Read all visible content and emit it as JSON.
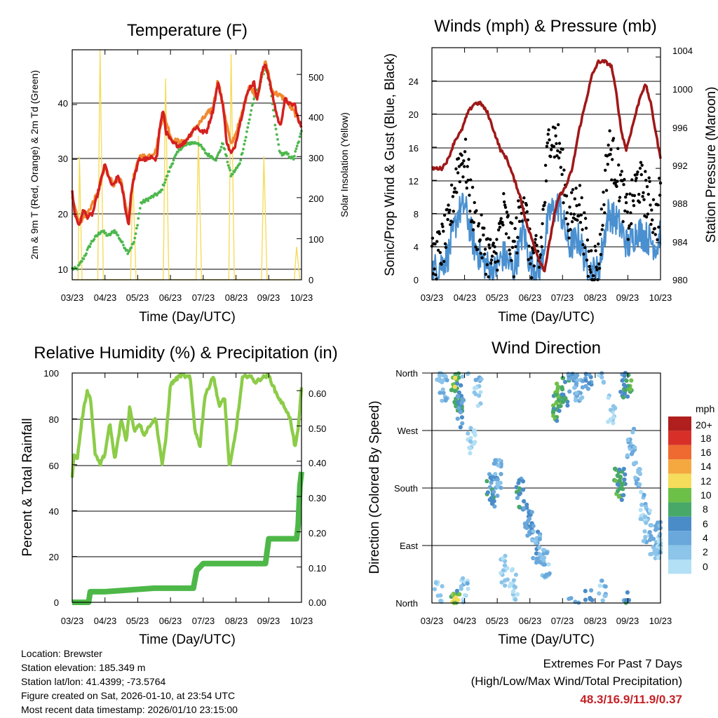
{
  "x_tick_labels": [
    "03/23",
    "04/23",
    "05/23",
    "06/23",
    "07/23",
    "08/23",
    "09/23",
    "10/23"
  ],
  "x_axis_label": "Time (Day/UTC)",
  "temperature_panel": {
    "title": "Temperature (F)",
    "left_label": "2m & 9m T (Red, Orange) & 2m Td (Green)",
    "right_label": "Solar Insolation (Yellow)",
    "left_ticks": [
      "10",
      "20",
      "30",
      "40"
    ],
    "right_ticks": [
      "0",
      "100",
      "200",
      "300",
      "400",
      "500"
    ]
  },
  "wind_panel": {
    "title": "Winds (mph) & Pressure (mb)",
    "left_label": "Sonic/Prop Wind & Gust (Blue, Black)",
    "right_label": "Station Pressure (Maroon)",
    "left_ticks": [
      "0",
      "4",
      "8",
      "12",
      "16",
      "20",
      "24"
    ],
    "right_ticks": [
      "980",
      "984",
      "988",
      "992",
      "996",
      "1000",
      "1004"
    ]
  },
  "humidity_panel": {
    "title": "Relative Humidity (%) & Precipitation (in)",
    "left_label": "Percent & Total Rainfall",
    "left_ticks": [
      "0",
      "20",
      "40",
      "60",
      "80",
      "100"
    ],
    "right_ticks": [
      "0.00",
      "0.10",
      "0.20",
      "0.30",
      "0.40",
      "0.50",
      "0.60"
    ]
  },
  "direction_panel": {
    "title": "Wind Direction",
    "left_label": "Direction (Colored By Speed)",
    "direction_ticks": [
      "North",
      "East",
      "South",
      "West",
      "North"
    ],
    "legend_title": "mph",
    "legend_labels": [
      "20+",
      "18",
      "16",
      "14",
      "12",
      "10",
      "8",
      "6",
      "4",
      "2",
      "0"
    ]
  },
  "colors": {
    "temp_2m": "#d42020",
    "temp_9m": "#f08a30",
    "dewpoint": "#4db84d",
    "solar": "#f5dc5a",
    "gust": "#000000",
    "wind": "#4a90d0",
    "pressure": "#a01818",
    "rh": "#8ccc48",
    "precip": "#4db848",
    "speed_scale": [
      "#b3e0f5",
      "#8cc4ea",
      "#6aa8dc",
      "#4a8cc8",
      "#48a868",
      "#6cc048",
      "#f5dc5a",
      "#f5a840",
      "#ee6a30",
      "#d83028",
      "#b01e1e"
    ]
  },
  "footer": {
    "location": "Location: Brewster",
    "elevation": "Station elevation: 185.349 m",
    "latlon": "Station lat/lon: 41.4399; -73.5764",
    "created": "Figure created on Sat, 2026-01-10, at 23:54 UTC",
    "recent": "Most recent data timestamp: 2026/01/10 23:15:00"
  },
  "extremes": {
    "title": "Extremes For Past 7 Days",
    "subtitle": "(High/Low/Max Wind/Total Precipitation)",
    "values": "48.3/16.9/11.9/0.37"
  },
  "chart_data": [
    {
      "type": "line",
      "title": "Temperature (F)",
      "xlabel": "Time (Day/UTC)",
      "ylabel": "2m & 9m T (Red, Orange) & 2m Td (Green)",
      "y2label": "Solar Insolation (Yellow)",
      "x_days": [
        0,
        1,
        2,
        3,
        4,
        5,
        6,
        7
      ],
      "ylim": [
        8,
        50
      ],
      "y2lim": [
        0,
        560
      ],
      "series": [
        {
          "name": "2m T",
          "x": [
            0,
            0.08,
            0.2,
            0.3,
            0.33,
            0.45,
            0.62,
            0.75,
            0.95,
            1.0,
            1.15,
            1.25,
            1.4,
            1.55,
            1.65,
            1.72,
            1.8,
            1.9,
            2.05,
            2.2,
            2.35,
            2.5,
            2.55,
            2.6,
            2.65,
            2.78,
            2.86,
            3.05,
            3.25,
            3.42,
            3.65,
            3.8,
            3.95,
            4.1,
            4.3,
            4.45,
            4.6,
            4.72,
            4.85,
            4.95,
            5.1,
            5.25,
            5.4,
            5.55,
            5.65,
            5.8,
            5.9,
            6.0,
            6.1,
            6.25,
            6.35,
            6.5,
            6.65,
            6.8,
            6.9,
            7.0
          ],
          "values": [
            24,
            20,
            18,
            19.5,
            21,
            19.5,
            20,
            23,
            28,
            29,
            26,
            25,
            27,
            24,
            20,
            18,
            24,
            27,
            30,
            30,
            30,
            30.5,
            30,
            31,
            35,
            39,
            35,
            33,
            32.5,
            33,
            35,
            36,
            35,
            35,
            39,
            44,
            40,
            33,
            31,
            32,
            36,
            40,
            43,
            44,
            41,
            46,
            47.5,
            45,
            42,
            38,
            36,
            41,
            40,
            40,
            37,
            36
          ]
        },
        {
          "name": "9m T",
          "x": [
            0,
            0.2,
            0.45,
            0.8,
            1.0,
            1.25,
            1.5,
            1.72,
            1.85,
            2.05,
            2.3,
            2.55,
            2.78,
            3.05,
            3.42,
            3.8,
            4.3,
            4.45,
            4.85,
            5.1,
            5.4,
            5.65,
            5.9,
            6.1,
            6.5,
            6.9,
            7.0
          ],
          "values": [
            23.5,
            18.5,
            20,
            24,
            28.5,
            25.5,
            26,
            18.5,
            26,
            30.5,
            30.5,
            31.5,
            38.5,
            33.5,
            33,
            36,
            39.5,
            44.5,
            32.5,
            36.5,
            43.5,
            41.5,
            48,
            42.5,
            41,
            37.5,
            36.5
          ]
        },
        {
          "name": "2m Td",
          "x": [
            0,
            0.15,
            0.35,
            0.6,
            0.9,
            1.1,
            1.3,
            1.5,
            1.7,
            1.9,
            2.1,
            2.4,
            2.7,
            2.9,
            3.1,
            3.3,
            3.6,
            3.85,
            4.1,
            4.4,
            4.6,
            4.85,
            5.1,
            5.3,
            5.5,
            5.75,
            5.9,
            6.05,
            6.2,
            6.35,
            6.55,
            6.75,
            6.85,
            7.0
          ],
          "values": [
            10,
            10,
            12,
            15,
            17,
            16,
            17,
            15,
            13,
            15,
            22,
            23,
            24,
            27,
            30,
            32,
            33,
            33,
            31,
            30,
            33,
            27,
            29,
            34,
            40,
            44,
            47,
            43,
            36,
            31,
            31,
            30,
            32,
            35
          ]
        },
        {
          "name": "Solar Insolation",
          "axis": "y2",
          "x": [
            0,
            0.18,
            0.22,
            0.3,
            0.5,
            0.78,
            0.85,
            0.95,
            1.5,
            1.78,
            1.85,
            1.95,
            2.5,
            2.78,
            2.85,
            2.95,
            3.5,
            3.78,
            3.85,
            3.95,
            4.5,
            4.78,
            4.85,
            4.95,
            5.5,
            5.78,
            5.85,
            5.95,
            6.5,
            6.78,
            6.85,
            6.95
          ],
          "values": [
            0,
            0,
            300,
            0,
            0,
            0,
            560,
            0,
            0,
            0,
            260,
            0,
            0,
            0,
            490,
            0,
            0,
            0,
            350,
            0,
            0,
            0,
            550,
            0,
            0,
            0,
            300,
            0,
            0,
            0,
            80,
            0
          ]
        }
      ]
    },
    {
      "type": "line",
      "title": "Winds (mph) & Pressure (mb)",
      "xlabel": "Time (Day/UTC)",
      "ylabel": "Sonic/Prop Wind & Gust (Blue, Black)",
      "y2label": "Station Pressure (Maroon)",
      "ylim": [
        0,
        28
      ],
      "y2lim": [
        980,
        1005
      ],
      "series": [
        {
          "name": "Station Pressure",
          "axis": "y2",
          "x": [
            0,
            0.15,
            0.3,
            0.5,
            0.7,
            0.9,
            1.1,
            1.3,
            1.5,
            1.7,
            1.9,
            2.1,
            2.3,
            2.5,
            2.7,
            2.9,
            3.1,
            3.3,
            3.45,
            3.6,
            3.75,
            3.9,
            4.1,
            4.3,
            4.5,
            4.7,
            4.9,
            5.1,
            5.3,
            5.5,
            5.65,
            5.8,
            5.95,
            6.1,
            6.25,
            6.4,
            6.55,
            6.7,
            6.85,
            7.0
          ],
          "values": [
            992,
            992,
            992,
            993,
            995,
            996,
            998,
            999,
            999,
            998,
            996,
            994,
            993,
            991,
            989,
            986,
            984,
            982,
            981,
            984,
            987,
            989,
            990,
            992,
            996,
            999,
            1002,
            1003.5,
            1003.5,
            1003,
            1000,
            996,
            994,
            996,
            998,
            1000,
            1001,
            999,
            996,
            993
          ]
        },
        {
          "name": "Wind",
          "x": [
            0,
            0.3,
            0.5,
            0.8,
            1.0,
            1.3,
            1.6,
            1.9,
            2.2,
            2.5,
            2.8,
            3.0,
            3.3,
            3.6,
            3.9,
            4.2,
            4.5,
            4.8,
            5.1,
            5.4,
            5.7,
            6.0,
            6.3,
            6.6,
            6.9,
            7.0
          ],
          "values": [
            1,
            2,
            3,
            8,
            9,
            4,
            2,
            1,
            3,
            1,
            6,
            2,
            1,
            8,
            9,
            4,
            5,
            1,
            1,
            8,
            7,
            4,
            6,
            5,
            4,
            6
          ]
        },
        {
          "name": "Gust",
          "x": [
            0,
            0.3,
            0.5,
            0.8,
            1.0,
            1.3,
            1.6,
            1.9,
            2.2,
            2.5,
            2.8,
            3.0,
            3.3,
            3.6,
            3.9,
            4.2,
            4.5,
            4.8,
            5.1,
            5.4,
            5.7,
            6.0,
            6.3,
            6.6,
            6.9,
            7.0
          ],
          "values": [
            2,
            4,
            6,
            14,
            15,
            7,
            4,
            2,
            8,
            3,
            11,
            3,
            2,
            18,
            16,
            7,
            10,
            2,
            2,
            16,
            13,
            7,
            12,
            10,
            7,
            12
          ]
        }
      ]
    },
    {
      "type": "line",
      "title": "Relative Humidity (%) & Precipitation (in)",
      "xlabel": "Time (Day/UTC)",
      "ylabel": "Percent & Total Rainfall",
      "ylim": [
        0,
        100
      ],
      "y2lim": [
        0,
        0.65
      ],
      "series": [
        {
          "name": "Relative Humidity",
          "x": [
            0,
            0.05,
            0.15,
            0.3,
            0.45,
            0.55,
            0.7,
            0.85,
            1.0,
            1.15,
            1.3,
            1.5,
            1.65,
            1.75,
            1.9,
            2.05,
            2.2,
            2.4,
            2.55,
            2.75,
            2.85,
            3.0,
            3.3,
            3.6,
            3.75,
            3.9,
            4.05,
            4.15,
            4.3,
            4.5,
            4.65,
            4.8,
            5.0,
            5.2,
            5.4,
            5.6,
            5.8,
            6.0,
            6.2,
            6.35,
            6.5,
            6.65,
            6.8,
            6.9,
            7.0
          ],
          "values": [
            55,
            65,
            62,
            80,
            92,
            90,
            65,
            60,
            65,
            78,
            62,
            80,
            70,
            85,
            75,
            78,
            73,
            78,
            80,
            60,
            70,
            95,
            99,
            98,
            75,
            68,
            90,
            93,
            99,
            85,
            90,
            58,
            75,
            98,
            99,
            96,
            98,
            99,
            92,
            88,
            85,
            80,
            68,
            75,
            94
          ]
        },
        {
          "name": "Total Precipitation",
          "axis": "y2",
          "x": [
            0,
            0.2,
            0.5,
            0.55,
            1.0,
            2.5,
            3.7,
            3.8,
            4.0,
            5.5,
            5.9,
            6.0,
            6.5,
            6.85,
            6.9,
            6.95,
            7.0
          ],
          "values": [
            0,
            0,
            0,
            0.03,
            0.03,
            0.04,
            0.04,
            0.09,
            0.11,
            0.11,
            0.11,
            0.18,
            0.18,
            0.18,
            0.22,
            0.33,
            0.37
          ]
        }
      ]
    },
    {
      "type": "scatter",
      "title": "Wind Direction",
      "xlabel": "Time (Day/UTC)",
      "ylabel": "Direction (Colored By Speed)",
      "ylim": [
        0,
        360
      ],
      "colorbar": {
        "label": "mph",
        "levels": [
          0,
          2,
          4,
          6,
          8,
          10,
          12,
          14,
          16,
          18,
          20
        ]
      },
      "series": [
        {
          "name": "Wind Direction",
          "x": [
            0.2,
            0.35,
            0.7,
            0.75,
            0.8,
            0.85,
            1.0,
            1.2,
            1.4,
            1.8,
            1.9,
            2.0,
            2.2,
            2.5,
            2.7,
            2.9,
            3.0,
            3.2,
            3.3,
            3.5,
            3.8,
            3.9,
            4.1,
            4.3,
            4.5,
            4.8,
            5.2,
            5.5,
            5.7,
            5.8,
            5.9,
            6.0,
            6.1,
            6.3,
            6.5,
            6.6,
            6.8,
            6.9,
            7.0
          ],
          "values": [
            10,
            340,
            355,
            350,
            320,
            300,
            15,
            250,
            330,
            180,
            175,
            200,
            50,
            30,
            170,
            140,
            120,
            90,
            80,
            60,
            310,
            320,
            330,
            350,
            340,
            355,
            10,
            300,
            190,
            185,
            340,
            355,
            250,
            200,
            150,
            120,
            100,
            80,
            110
          ],
          "speeds": [
            2,
            4,
            9,
            11,
            8,
            6,
            3,
            2,
            3,
            7,
            6,
            4,
            2,
            2,
            7,
            6,
            6,
            5,
            4,
            3,
            9,
            10,
            8,
            5,
            4,
            6,
            3,
            2,
            9,
            8,
            7,
            9,
            4,
            4,
            3,
            3,
            4,
            3,
            3
          ]
        }
      ]
    }
  ]
}
